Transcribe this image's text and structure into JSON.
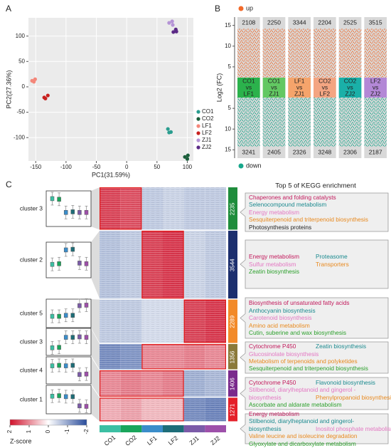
{
  "panel_labels": [
    "A",
    "B",
    "C"
  ],
  "chart_data": [
    {
      "type": "scatter",
      "xlabel": "PC1(31.59%)",
      "ylabel": "PC2(27.36%)",
      "xlim": [
        -162,
        110
      ],
      "ylim": [
        -146,
        136
      ],
      "xticks": [
        -150,
        -100,
        -50,
        0,
        50,
        100
      ],
      "yticks": [
        -100,
        -50,
        0,
        50,
        100
      ],
      "grid": true,
      "legend": "right",
      "series": [
        {
          "name": "CO1",
          "color": "#2a9d8f",
          "x": [
            68,
            73,
            70
          ],
          "values": [
            -83,
            -89,
            -90
          ]
        },
        {
          "name": "CO2",
          "color": "#1b5e3b",
          "x": [
            96,
            100,
            101
          ],
          "values": [
            -138,
            -142,
            -135
          ]
        },
        {
          "name": "LF1",
          "color": "#f4877a",
          "x": [
            -156,
            -151,
            -153
          ],
          "values": [
            12,
            15,
            10
          ]
        },
        {
          "name": "LF2",
          "color": "#c8201e",
          "x": [
            -136,
            -130,
            -134
          ],
          "values": [
            -21,
            -17,
            -23
          ]
        },
        {
          "name": "ZJ1",
          "color": "#b594d6",
          "x": [
            70,
            75,
            76
          ],
          "values": [
            126,
            129,
            122
          ]
        },
        {
          "name": "ZJ2",
          "color": "#5b2a86",
          "x": [
            77,
            82,
            81
          ],
          "values": [
            108,
            109,
            113
          ]
        }
      ]
    },
    {
      "type": "diverging_count",
      "ylabel": "Log2 (FC)",
      "ylim": [
        -17,
        17
      ],
      "yticks": [
        15,
        10,
        5,
        {
          "value": -5,
          "label": "5"
        },
        {
          "value": -10,
          "label": "10"
        },
        {
          "value": -15,
          "label": "15"
        }
      ],
      "categories": [
        [
          "CO1",
          "vs",
          "LF1"
        ],
        [
          "CO1",
          "vs",
          "ZJ1"
        ],
        [
          "LF1",
          "vs",
          "ZJ1"
        ],
        [
          "CO2",
          "vs",
          "LF2"
        ],
        [
          "CO2",
          "vs",
          "ZJ2"
        ],
        [
          "LF2",
          "vs",
          "ZJ2"
        ]
      ],
      "category_colors": [
        "#2bb24c",
        "#62c862",
        "#f5a46b",
        "#f4a582",
        "#1ab0a8",
        "#b388d6"
      ],
      "series": [
        {
          "name": "up",
          "color": "#f26a2a",
          "values": [
            2108,
            2250,
            3344,
            2204,
            2525,
            3515
          ]
        },
        {
          "name": "down",
          "color": "#17a78b",
          "values": [
            3241,
            2405,
            2326,
            3248,
            2306,
            2187
          ]
        }
      ]
    },
    {
      "type": "heatmap",
      "columns": [
        "CO1",
        "CO2",
        "LF1",
        "LF2",
        "ZJ1",
        "ZJ2"
      ],
      "column_colors": [
        "#3cbfa3",
        "#1aa55b",
        "#3b8dca",
        "#1e6d78",
        "#7b5ba8",
        "#9e50aa"
      ],
      "zlim": [
        -2,
        2
      ],
      "colorbar": {
        "label": "Z-score",
        "ticks": [
          2,
          1,
          0,
          -1,
          -2
        ],
        "colors": [
          "#d0112b",
          "#ffffff",
          "#2a4d9c"
        ]
      },
      "kegg_title": "Top 5 of KEGG enrichment",
      "clusters": [
        {
          "name": "cluster 3",
          "size": 2235,
          "color": "#1f8d3c",
          "values": [
            1.6,
            1.5,
            -0.6,
            -0.5,
            -0.6,
            -0.6
          ],
          "kegg": [
            [
              {
                "text": "Chaperones and folding catalysts",
                "color": "#c2185b"
              }
            ],
            [
              {
                "text": "Selenocompound metabolism",
                "color": "#1b8a8f"
              }
            ],
            [
              {
                "text": "Energy metabolism",
                "color": "#e377c2"
              }
            ],
            [
              {
                "text": "Sesquiterpenoid and triterpenoid biosynthesis",
                "color": "#e8891e"
              }
            ],
            [
              {
                "text": "Photosynthesis proteins",
                "color": "#222222"
              }
            ]
          ]
        },
        {
          "name": "cluster 2",
          "size": 3544,
          "color": "#1c2f6e",
          "values": [
            -0.7,
            -0.6,
            1.6,
            1.7,
            -0.5,
            -0.6
          ],
          "kegg": [
            [
              {
                "text": "Energy metabolism",
                "color": "#c2185b"
              },
              {
                "text": "Proteasome",
                "color": "#1b8a8f"
              }
            ],
            [
              {
                "text": "Sulfur metabolism",
                "color": "#e377c2"
              },
              {
                "text": "Transporters",
                "color": "#e8891e"
              }
            ],
            [
              {
                "text": "Zeatin biosynthesis",
                "color": "#2ca02c"
              }
            ]
          ]
        },
        {
          "name": "cluster 5",
          "size": 2289,
          "color": "#f28a2a",
          "values": [
            -0.6,
            -0.6,
            -0.4,
            -0.4,
            1.6,
            1.7
          ],
          "kegg": [
            [
              {
                "text": "Biosynthesis of unsaturated fatty acids",
                "color": "#c2185b"
              }
            ],
            [
              {
                "text": "Anthocyanin biosynthesis",
                "color": "#1b8a8f"
              }
            ],
            [
              {
                "text": "Carotenoid biosynthesis",
                "color": "#e377c2"
              }
            ],
            [
              {
                "text": "Amino acid metabolism",
                "color": "#e8891e"
              }
            ],
            [
              {
                "text": "Cutin, suberine and wax biosynthesis",
                "color": "#2ca02c"
              }
            ]
          ]
        },
        {
          "name": "cluster 3",
          "size": 1356,
          "color": "#8b7a3a",
          "values": [
            -1.3,
            -1.2,
            1.0,
            1.0,
            1.1,
            1.0
          ],
          "kegg": [
            [
              {
                "text": "Cytochrome P450",
                "color": "#c2185b"
              },
              {
                "text": "Zeatin biosynthesis",
                "color": "#1b8a8f"
              }
            ],
            [
              {
                "text": "Glucosinolate biosynthesis",
                "color": "#e377c2"
              }
            ],
            [
              {
                "text": "Metabolism of terpenoids and polyketides",
                "color": "#e8891e"
              }
            ],
            [
              {
                "text": "Sesquiterpenoid and triterpenoid biosynthesis",
                "color": "#2ca02c"
              }
            ]
          ]
        },
        {
          "name": "cluster 4",
          "size": 1406,
          "color": "#7a2a8c",
          "values": [
            1.0,
            1.1,
            1.0,
            1.1,
            -0.9,
            -0.8
          ],
          "kegg": [
            [
              {
                "text": "Cytochrome P450",
                "color": "#c2185b"
              },
              {
                "text": "Flavonoid biosynthesis",
                "color": "#1b8a8f"
              }
            ],
            [
              {
                "text": "Stilbenoid, diarylheptanoid and gingerol -",
                "color": "#e377c2"
              }
            ],
            [
              {
                "text": "biosynthesis",
                "color": "#e377c2"
              },
              {
                "text": "Phenylpropanoid biosynthesis",
                "color": "#e8891e"
              }
            ],
            [
              {
                "text": "Ascorbate and aldarate metabolism",
                "color": "#2ca02c"
              }
            ]
          ]
        },
        {
          "name": "cluster 1",
          "size": 1271,
          "color": "#e4202a",
          "values": [
            0.7,
            0.8,
            0.6,
            0.6,
            -1.3,
            -1.4
          ],
          "kegg": [
            [
              {
                "text": "Energy metabolism",
                "color": "#c2185b"
              }
            ],
            [
              {
                "text": "Stilbenoid, diarylheptanoid and gingerol-",
                "color": "#1b8a8f"
              }
            ],
            [
              {
                "text": "biosynthesis",
                "color": "#1b8a8f"
              },
              {
                "text": "Inositol phosphate metabolism",
                "color": "#e377c2"
              }
            ],
            [
              {
                "text": "Valine leucine and isoleucine degradation",
                "color": "#e8891e"
              }
            ],
            [
              {
                "text": "Glyoxylate and dicarboxylate metabolism",
                "color": "#2ca02c"
              }
            ]
          ]
        }
      ]
    }
  ]
}
